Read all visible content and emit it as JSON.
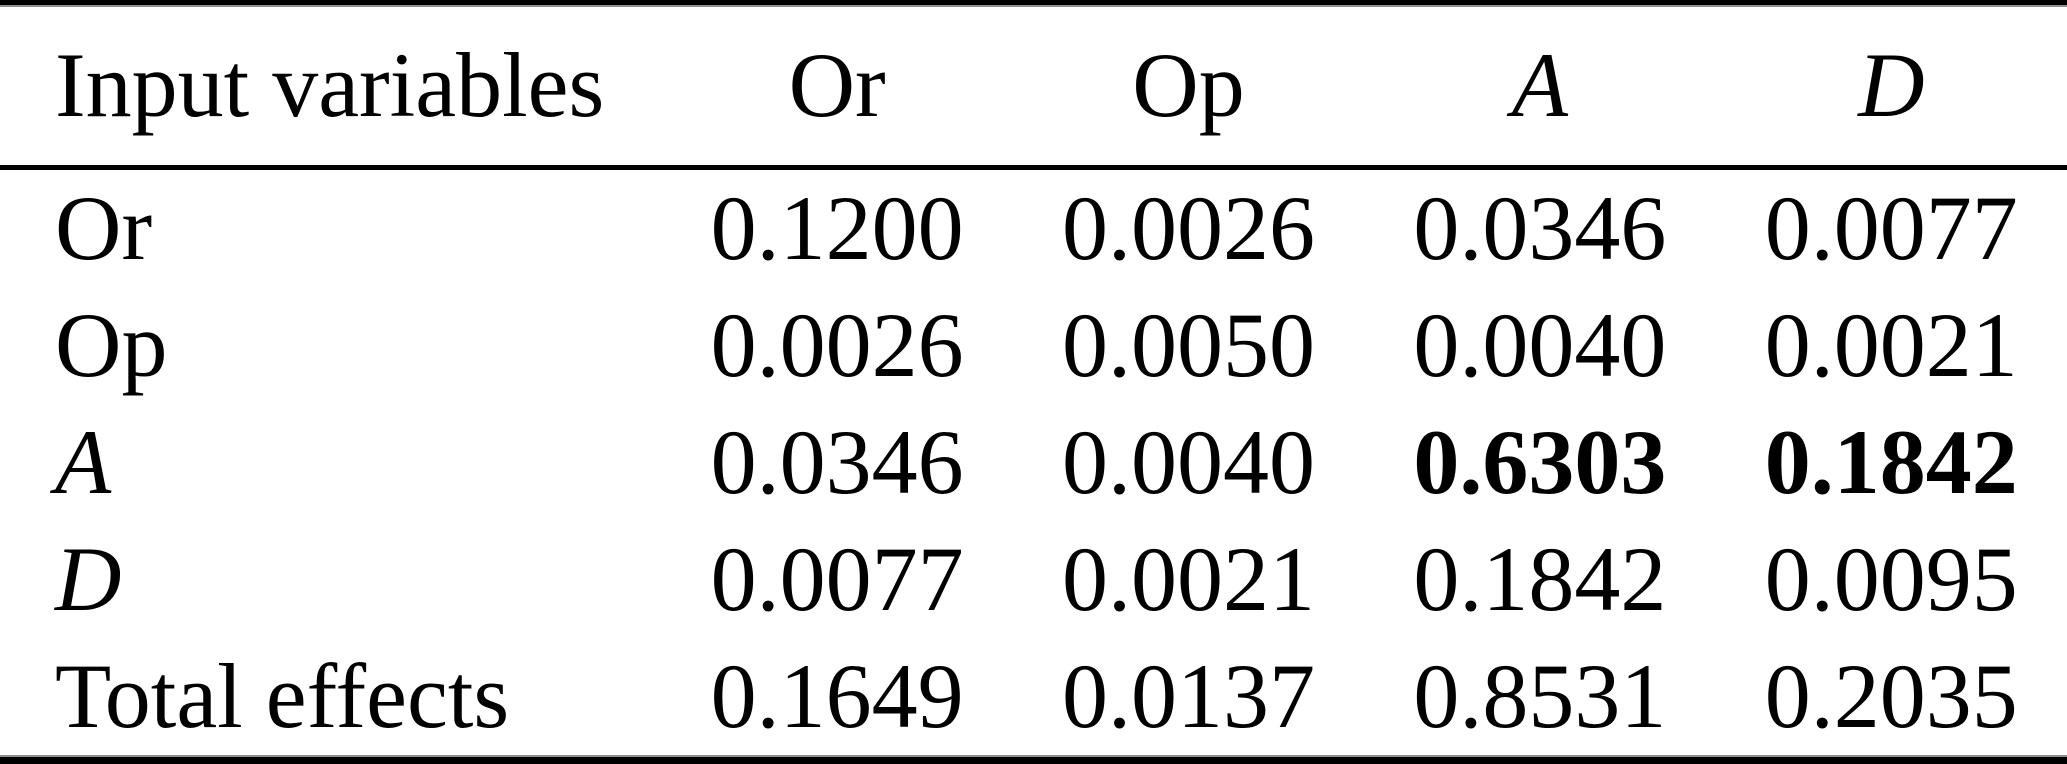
{
  "figure": {
    "background": "#ffffff",
    "text_color": "#000000",
    "rule_color": "#000000",
    "rule_secondary_color": "#8f8f8f"
  },
  "table": {
    "header": [
      {
        "label": "Input variables",
        "italic": false
      },
      {
        "label": "Or",
        "italic": false
      },
      {
        "label": "Op",
        "italic": false
      },
      {
        "label": "A",
        "italic": true
      },
      {
        "label": "D",
        "italic": true
      }
    ],
    "rows": [
      {
        "label": "Or",
        "italic": false,
        "cells": [
          {
            "value": "0.1200",
            "bold": false
          },
          {
            "value": "0.0026",
            "bold": false
          },
          {
            "value": "0.0346",
            "bold": false
          },
          {
            "value": "0.0077",
            "bold": false
          }
        ]
      },
      {
        "label": "Op",
        "italic": false,
        "cells": [
          {
            "value": "0.0026",
            "bold": false
          },
          {
            "value": "0.0050",
            "bold": false
          },
          {
            "value": "0.0040",
            "bold": false
          },
          {
            "value": "0.0021",
            "bold": false
          }
        ]
      },
      {
        "label": "A",
        "italic": true,
        "cells": [
          {
            "value": "0.0346",
            "bold": false
          },
          {
            "value": "0.0040",
            "bold": false
          },
          {
            "value": "0.6303",
            "bold": true
          },
          {
            "value": "0.1842",
            "bold": true
          }
        ]
      },
      {
        "label": "D",
        "italic": true,
        "cells": [
          {
            "value": "0.0077",
            "bold": false
          },
          {
            "value": "0.0021",
            "bold": false
          },
          {
            "value": "0.1842",
            "bold": false
          },
          {
            "value": "0.0095",
            "bold": false
          }
        ]
      },
      {
        "label": "Total effects",
        "italic": false,
        "cells": [
          {
            "value": "0.1649",
            "bold": false
          },
          {
            "value": "0.0137",
            "bold": false
          },
          {
            "value": "0.8531",
            "bold": false
          },
          {
            "value": "0.2035",
            "bold": false
          }
        ]
      }
    ]
  },
  "chart_data": {
    "type": "table",
    "title": "",
    "columns": [
      "Input variables",
      "Or",
      "Op",
      "A",
      "D"
    ],
    "rows": [
      [
        "Or",
        0.12,
        0.0026,
        0.0346,
        0.0077
      ],
      [
        "Op",
        0.0026,
        0.005,
        0.004,
        0.0021
      ],
      [
        "A",
        0.0346,
        0.004,
        0.6303,
        0.1842
      ],
      [
        "D",
        0.0077,
        0.0021,
        0.1842,
        0.0095
      ],
      [
        "Total effects",
        0.1649,
        0.0137,
        0.8531,
        0.2035
      ]
    ],
    "emphasis": "Bold values 0.6303 and 0.1842 in row A (columns A and D)",
    "layout": "double rule at top and bottom (thick black with thin gray companion), single thick rule under header"
  }
}
